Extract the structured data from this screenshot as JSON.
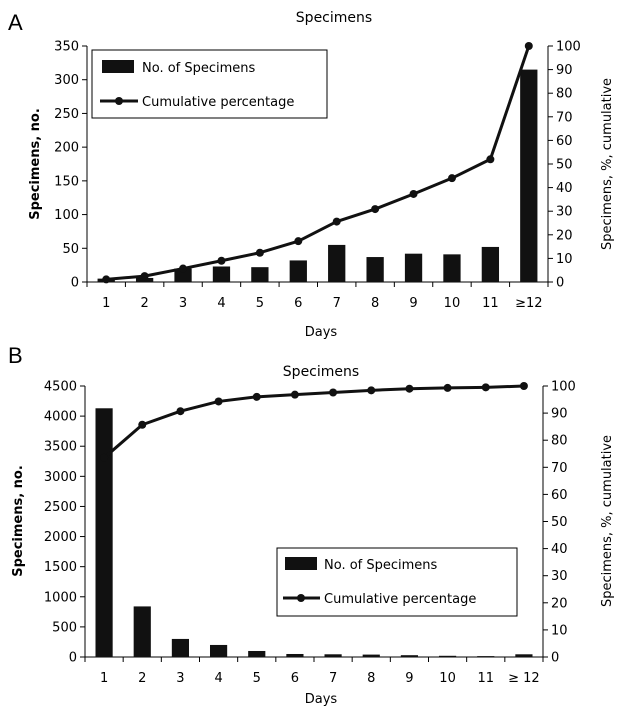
{
  "chart_data": [
    {
      "panel": "A",
      "type": "bar",
      "title": "Specimens",
      "xlabel": "Days",
      "ylabel": "Specimens, no.",
      "y2label": "Specimens, %, cumulative",
      "categories": [
        "1",
        "2",
        "3",
        "4",
        "5",
        "6",
        "7",
        "8",
        "9",
        "10",
        "11",
        "≥12"
      ],
      "ylim": [
        0,
        350
      ],
      "yticks": [
        0,
        50,
        100,
        150,
        200,
        250,
        300,
        350
      ],
      "y2lim": [
        0,
        100
      ],
      "y2ticks": [
        0,
        10,
        20,
        30,
        40,
        50,
        60,
        70,
        80,
        90,
        100
      ],
      "legend_position": "top-left",
      "series": [
        {
          "name": "No. of Specimens",
          "kind": "bar",
          "axis": "left",
          "color": "#111111",
          "values": [
            5,
            6,
            20,
            23,
            22,
            32,
            55,
            37,
            42,
            41,
            52,
            315
          ]
        },
        {
          "name": "Cumulative percentage",
          "kind": "line",
          "axis": "right",
          "color": "#111111",
          "values": [
            1.1,
            2.5,
            5.7,
            9.0,
            12.4,
            17.3,
            25.6,
            30.9,
            37.3,
            44.0,
            52.0,
            100
          ]
        }
      ]
    },
    {
      "panel": "B",
      "type": "bar",
      "title": "Specimens",
      "xlabel": "Days",
      "ylabel": "Specimens, no.",
      "y2label": "Specimens, %, cumulative",
      "categories": [
        "1",
        "2",
        "3",
        "4",
        "5",
        "6",
        "7",
        "8",
        "9",
        "10",
        "11",
        "≥ 12"
      ],
      "ylim": [
        0,
        4500
      ],
      "yticks": [
        0,
        500,
        1000,
        1500,
        2000,
        2500,
        3000,
        3500,
        4000,
        4500
      ],
      "y2lim": [
        0,
        100
      ],
      "y2ticks": [
        0,
        10,
        20,
        30,
        40,
        50,
        60,
        70,
        80,
        90,
        100
      ],
      "legend_position": "center-right",
      "series": [
        {
          "name": "No. of Specimens",
          "kind": "bar",
          "axis": "left",
          "color": "#111111",
          "values": [
            4130,
            840,
            300,
            200,
            100,
            50,
            45,
            40,
            30,
            20,
            15,
            45
          ]
        },
        {
          "name": "Cumulative percentage",
          "kind": "line",
          "axis": "right",
          "color": "#111111",
          "values": [
            73.5,
            85.7,
            90.7,
            94.3,
            96.0,
            96.8,
            97.6,
            98.4,
            99.0,
            99.3,
            99.5,
            100
          ]
        }
      ]
    }
  ]
}
